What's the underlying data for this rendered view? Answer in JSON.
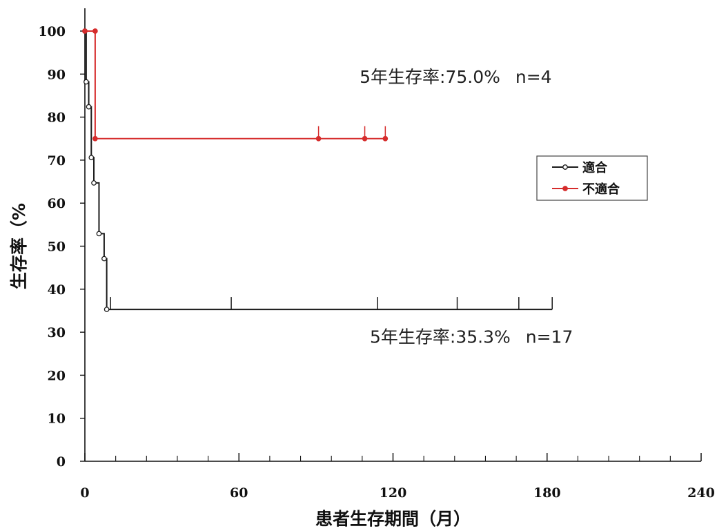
{
  "chart_data": {
    "type": "line",
    "step": true,
    "xlabel": "患者生存期間（月）",
    "ylabel": "生存率（%",
    "xlim": [
      0,
      240
    ],
    "ylim": [
      0,
      100
    ],
    "xticks_major": [
      0,
      60,
      120,
      180,
      240
    ],
    "xticks_minor_step": 12,
    "yticks": [
      0,
      10,
      20,
      30,
      40,
      50,
      60,
      70,
      80,
      90,
      100
    ],
    "legend": {
      "placement": "right",
      "entries": [
        "適合",
        "不適合"
      ]
    },
    "series": [
      {
        "name": "適合",
        "color": "#1a1a1a",
        "marker": "open-circle",
        "steps": [
          [
            0,
            100
          ],
          [
            0.5,
            88.2
          ],
          [
            1.5,
            82.4
          ],
          [
            2.5,
            70.6
          ],
          [
            3.5,
            64.7
          ],
          [
            5.5,
            52.9
          ],
          [
            7.5,
            47.1
          ],
          [
            8.5,
            35.3
          ],
          [
            182,
            35.3
          ]
        ],
        "points": [
          [
            0,
            100
          ],
          [
            0.5,
            88.2
          ],
          [
            1.5,
            82.4
          ],
          [
            2.5,
            70.6
          ],
          [
            3.5,
            64.7
          ],
          [
            5.5,
            52.9
          ],
          [
            7.5,
            47.1
          ],
          [
            8.5,
            35.3
          ]
        ],
        "censored": [
          [
            10,
            35.3
          ],
          [
            57,
            35.3
          ],
          [
            114,
            35.3
          ],
          [
            145,
            35.3
          ],
          [
            169,
            35.3
          ],
          [
            182,
            35.3
          ]
        ],
        "annotation": {
          "label": "5年生存率",
          "value": "35.3%",
          "n": "n=17"
        }
      },
      {
        "name": "不適合",
        "color": "#d62c2c",
        "marker": "filled-circle",
        "steps": [
          [
            0,
            100
          ],
          [
            4,
            100
          ],
          [
            4,
            75
          ],
          [
            117,
            75
          ]
        ],
        "points": [
          [
            0,
            100
          ],
          [
            4,
            100
          ],
          [
            4,
            75
          ],
          [
            91,
            75
          ],
          [
            109,
            75
          ],
          [
            117,
            75
          ]
        ],
        "censored": [
          [
            91,
            75
          ],
          [
            109,
            75
          ],
          [
            117,
            75
          ]
        ],
        "annotation": {
          "label": "5年生存率",
          "value": "75.0%",
          "n": "n=4"
        }
      }
    ]
  }
}
